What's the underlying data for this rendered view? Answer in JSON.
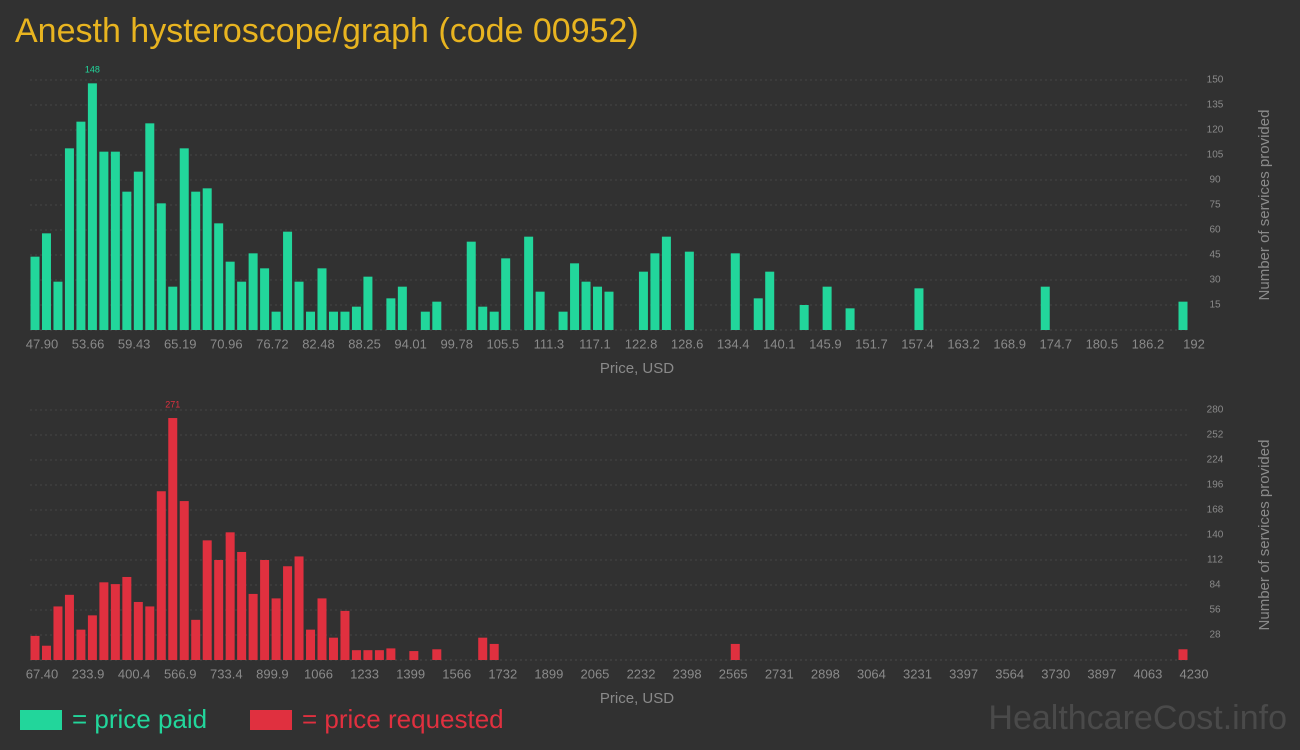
{
  "title": "Anesth hysteroscope/graph (code 00952)",
  "watermark": "HealthcareCost.info",
  "chart_data": [
    {
      "type": "bar",
      "xlabel": "Price, USD",
      "ylabel": "Number of services provided",
      "series": [
        {
          "name": "= price paid",
          "color": "#22d69b",
          "values": [
            44,
            58,
            29,
            109,
            125,
            148,
            107,
            107,
            83,
            95,
            124,
            76,
            26,
            109,
            83,
            85,
            64,
            41,
            29,
            46,
            37,
            11,
            59,
            29,
            11,
            37,
            11,
            11,
            14,
            32,
            0,
            19,
            26,
            0,
            11,
            17,
            0,
            0,
            53,
            14,
            11,
            43,
            0,
            56,
            23,
            0,
            11,
            40,
            29,
            26,
            23,
            0,
            0,
            35,
            46,
            56,
            0,
            47,
            0,
            0,
            0,
            46,
            0,
            19,
            35,
            0,
            0,
            15,
            0,
            26,
            0,
            13,
            0,
            0,
            0,
            0,
            0,
            25,
            0,
            0,
            0,
            0,
            0,
            0,
            0,
            0,
            0,
            0,
            26,
            0,
            0,
            0,
            0,
            0,
            0,
            0,
            0,
            0,
            0,
            0,
            17
          ]
        }
      ],
      "categories": [
        "47.90",
        null,
        null,
        null,
        "53.66",
        null,
        null,
        null,
        "59.43",
        null,
        null,
        null,
        "65.19",
        null,
        null,
        null,
        "70.96",
        null,
        null,
        null,
        "76.72",
        null,
        null,
        null,
        "82.48",
        null,
        null,
        null,
        "88.25",
        null,
        null,
        null,
        "94.01",
        null,
        null,
        null,
        "99.78",
        null,
        null,
        null,
        "105.5",
        null,
        null,
        null,
        "111.3",
        null,
        null,
        null,
        "117.1",
        null,
        null,
        null,
        "122.8",
        null,
        null,
        null,
        "128.6",
        null,
        null,
        null,
        "134.4",
        null,
        null,
        null,
        "140.1",
        null,
        null,
        null,
        "145.9",
        null,
        null,
        null,
        "151.7",
        null,
        null,
        null,
        "157.4",
        null,
        null,
        null,
        "163.2",
        null,
        null,
        null,
        "168.9",
        null,
        null,
        null,
        "174.7",
        null,
        null,
        null,
        "180.5",
        null,
        null,
        null,
        "186.2",
        null,
        null,
        null,
        "192"
      ],
      "ylim": [
        0,
        150
      ],
      "yticks": [
        15,
        30,
        45,
        60,
        75,
        90,
        105,
        120,
        135,
        150
      ],
      "grid": true
    },
    {
      "type": "bar",
      "xlabel": "Price, USD",
      "ylabel": "Number of services provided",
      "series": [
        {
          "name": "= price requested",
          "color": "#e0303f",
          "values": [
            27,
            16,
            60,
            73,
            34,
            50,
            87,
            85,
            93,
            65,
            60,
            189,
            271,
            178,
            45,
            134,
            112,
            143,
            121,
            74,
            112,
            69,
            105,
            116,
            34,
            69,
            25,
            55,
            11,
            11,
            11,
            13,
            0,
            10,
            0,
            12,
            0,
            0,
            0,
            25,
            18,
            0,
            0,
            0,
            0,
            0,
            0,
            0,
            0,
            0,
            0,
            0,
            0,
            0,
            0,
            0,
            0,
            0,
            0,
            0,
            0,
            18,
            0,
            0,
            0,
            0,
            0,
            0,
            0,
            0,
            0,
            0,
            0,
            0,
            0,
            0,
            0,
            0,
            0,
            0,
            0,
            0,
            0,
            0,
            0,
            0,
            0,
            0,
            0,
            0,
            0,
            0,
            0,
            0,
            0,
            0,
            0,
            0,
            0,
            0,
            12
          ]
        }
      ],
      "categories": [
        "67.40",
        null,
        null,
        null,
        "233.9",
        null,
        null,
        null,
        "400.4",
        null,
        null,
        null,
        "566.9",
        null,
        null,
        null,
        "733.4",
        null,
        null,
        null,
        "899.9",
        null,
        null,
        null,
        "1066",
        null,
        null,
        null,
        "1233",
        null,
        null,
        null,
        "1399",
        null,
        null,
        null,
        "1566",
        null,
        null,
        null,
        "1732",
        null,
        null,
        null,
        "1899",
        null,
        null,
        null,
        "2065",
        null,
        null,
        null,
        "2232",
        null,
        null,
        null,
        "2398",
        null,
        null,
        null,
        "2565",
        null,
        null,
        null,
        "2731",
        null,
        null,
        null,
        "2898",
        null,
        null,
        null,
        "3064",
        null,
        null,
        null,
        "3231",
        null,
        null,
        null,
        "3397",
        null,
        null,
        null,
        "3564",
        null,
        null,
        null,
        "3730",
        null,
        null,
        null,
        "3897",
        null,
        null,
        null,
        "4063",
        null,
        null,
        null,
        "4230"
      ],
      "ylim": [
        0,
        280
      ],
      "yticks": [
        28,
        56,
        84,
        112,
        140,
        168,
        196,
        224,
        252,
        280
      ],
      "grid": true
    }
  ]
}
